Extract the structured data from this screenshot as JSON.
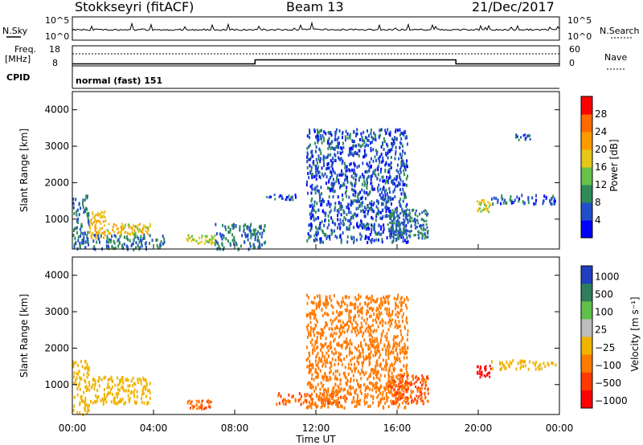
{
  "header": {
    "station": "Stokkseyri (fitACF)",
    "beam": "Beam 13",
    "date": "21/Dec/2017"
  },
  "nsky_panel": {
    "left_label": "N.Sky",
    "right_label": "N.Search",
    "y_ticks_left": [
      "10^5",
      "10^0"
    ],
    "y_ticks_right": [
      "10^5",
      "10^0"
    ]
  },
  "freq_panel": {
    "left_label_1": "Freq.",
    "left_label_2": "[MHz]",
    "right_label": "Nave",
    "y_ticks_left": [
      "18",
      "8"
    ],
    "y_ticks_right": [
      "60",
      "0"
    ]
  },
  "cpid": {
    "label": "CPID",
    "text": "normal (fast) 151"
  },
  "x_axis": {
    "label": "Time UT",
    "ticks": [
      "00:00",
      "04:00",
      "08:00",
      "12:00",
      "16:00",
      "20:00",
      "00:00"
    ]
  },
  "y_axis": {
    "label": "Slant Range [km]",
    "ticks": [
      "1000",
      "2000",
      "3000",
      "4000"
    ]
  },
  "power_colorbar": {
    "label": "Power [dB]",
    "ticks": [
      "4",
      "8",
      "12",
      "16",
      "20",
      "24",
      "28"
    ],
    "colors": [
      "#0000ff",
      "#1f4fc8",
      "#2e8b57",
      "#66c24a",
      "#e6c619",
      "#ff9a00",
      "#ff6a00",
      "#ff0000"
    ]
  },
  "velocity_colorbar": {
    "label": "Velocity [m s⁻¹]",
    "ticks": [
      "1000",
      "500",
      "100",
      "25",
      "−25",
      "−100",
      "−500",
      "−1000"
    ],
    "colors": [
      "#1f3fbf",
      "#2e7d5b",
      "#5fc04a",
      "#bdbdbd",
      "#f0b400",
      "#ff7a00",
      "#ff3a00",
      "#ff0000"
    ]
  },
  "chart_data": {
    "type": "heatmap",
    "title": "Stokkseyri (fitACF) Beam 13 21/Dec/2017",
    "xlabel": "Time UT",
    "ylabel": "Slant Range [km]",
    "xlim": [
      0,
      24
    ],
    "ylim": [
      180,
      4500
    ],
    "frequency_MHz": [
      {
        "start_h": 0.0,
        "end_h": 9.0,
        "value": 9
      },
      {
        "start_h": 9.0,
        "end_h": 18.9,
        "value": 11
      },
      {
        "start_h": 18.9,
        "end_h": 24.0,
        "value": 9
      }
    ],
    "power_clusters_dB": [
      {
        "t0": 0.0,
        "t1": 0.8,
        "r0": 200,
        "r1": 1700,
        "value": 8
      },
      {
        "t0": 0.8,
        "t1": 1.6,
        "r0": 500,
        "r1": 1250,
        "value": 20
      },
      {
        "t0": 1.6,
        "t1": 3.8,
        "r0": 600,
        "r1": 900,
        "value": 18
      },
      {
        "t0": 1.0,
        "t1": 4.5,
        "r0": 200,
        "r1": 600,
        "value": 8
      },
      {
        "t0": 5.6,
        "t1": 7.0,
        "r0": 350,
        "r1": 600,
        "value": 16
      },
      {
        "t0": 7.0,
        "t1": 9.5,
        "r0": 200,
        "r1": 900,
        "value": 8
      },
      {
        "t0": 9.5,
        "t1": 11.0,
        "r0": 1550,
        "r1": 1700,
        "value": 6
      },
      {
        "t0": 11.5,
        "t1": 16.5,
        "r0": 400,
        "r1": 3500,
        "value": 6
      },
      {
        "t0": 15.5,
        "t1": 17.5,
        "r0": 500,
        "r1": 1300,
        "value": 8
      },
      {
        "t0": 19.9,
        "t1": 20.6,
        "r0": 1200,
        "r1": 1550,
        "value": 18
      },
      {
        "t0": 20.6,
        "t1": 23.8,
        "r0": 1450,
        "r1": 1700,
        "value": 6
      },
      {
        "t0": 21.8,
        "t1": 22.6,
        "r0": 3200,
        "r1": 3350,
        "value": 6
      }
    ],
    "velocity_clusters_ms": [
      {
        "t0": 0.0,
        "t1": 0.8,
        "r0": 200,
        "r1": 1700,
        "value": 0
      },
      {
        "t0": 0.8,
        "t1": 3.8,
        "r0": 500,
        "r1": 1250,
        "value": 0
      },
      {
        "t0": 5.6,
        "t1": 7.0,
        "r0": 350,
        "r1": 600,
        "value": -100
      },
      {
        "t0": 10.0,
        "t1": 13.5,
        "r0": 500,
        "r1": 800,
        "value": -100
      },
      {
        "t0": 11.5,
        "t1": 16.5,
        "r0": 400,
        "r1": 3500,
        "value": -60
      },
      {
        "t0": 15.5,
        "t1": 17.5,
        "r0": 500,
        "r1": 1300,
        "value": -100
      },
      {
        "t0": 19.9,
        "t1": 20.6,
        "r0": 1200,
        "r1": 1550,
        "value": -600
      },
      {
        "t0": 20.6,
        "t1": 23.8,
        "r0": 1450,
        "r1": 1700,
        "value": 0
      }
    ],
    "grid": false
  }
}
